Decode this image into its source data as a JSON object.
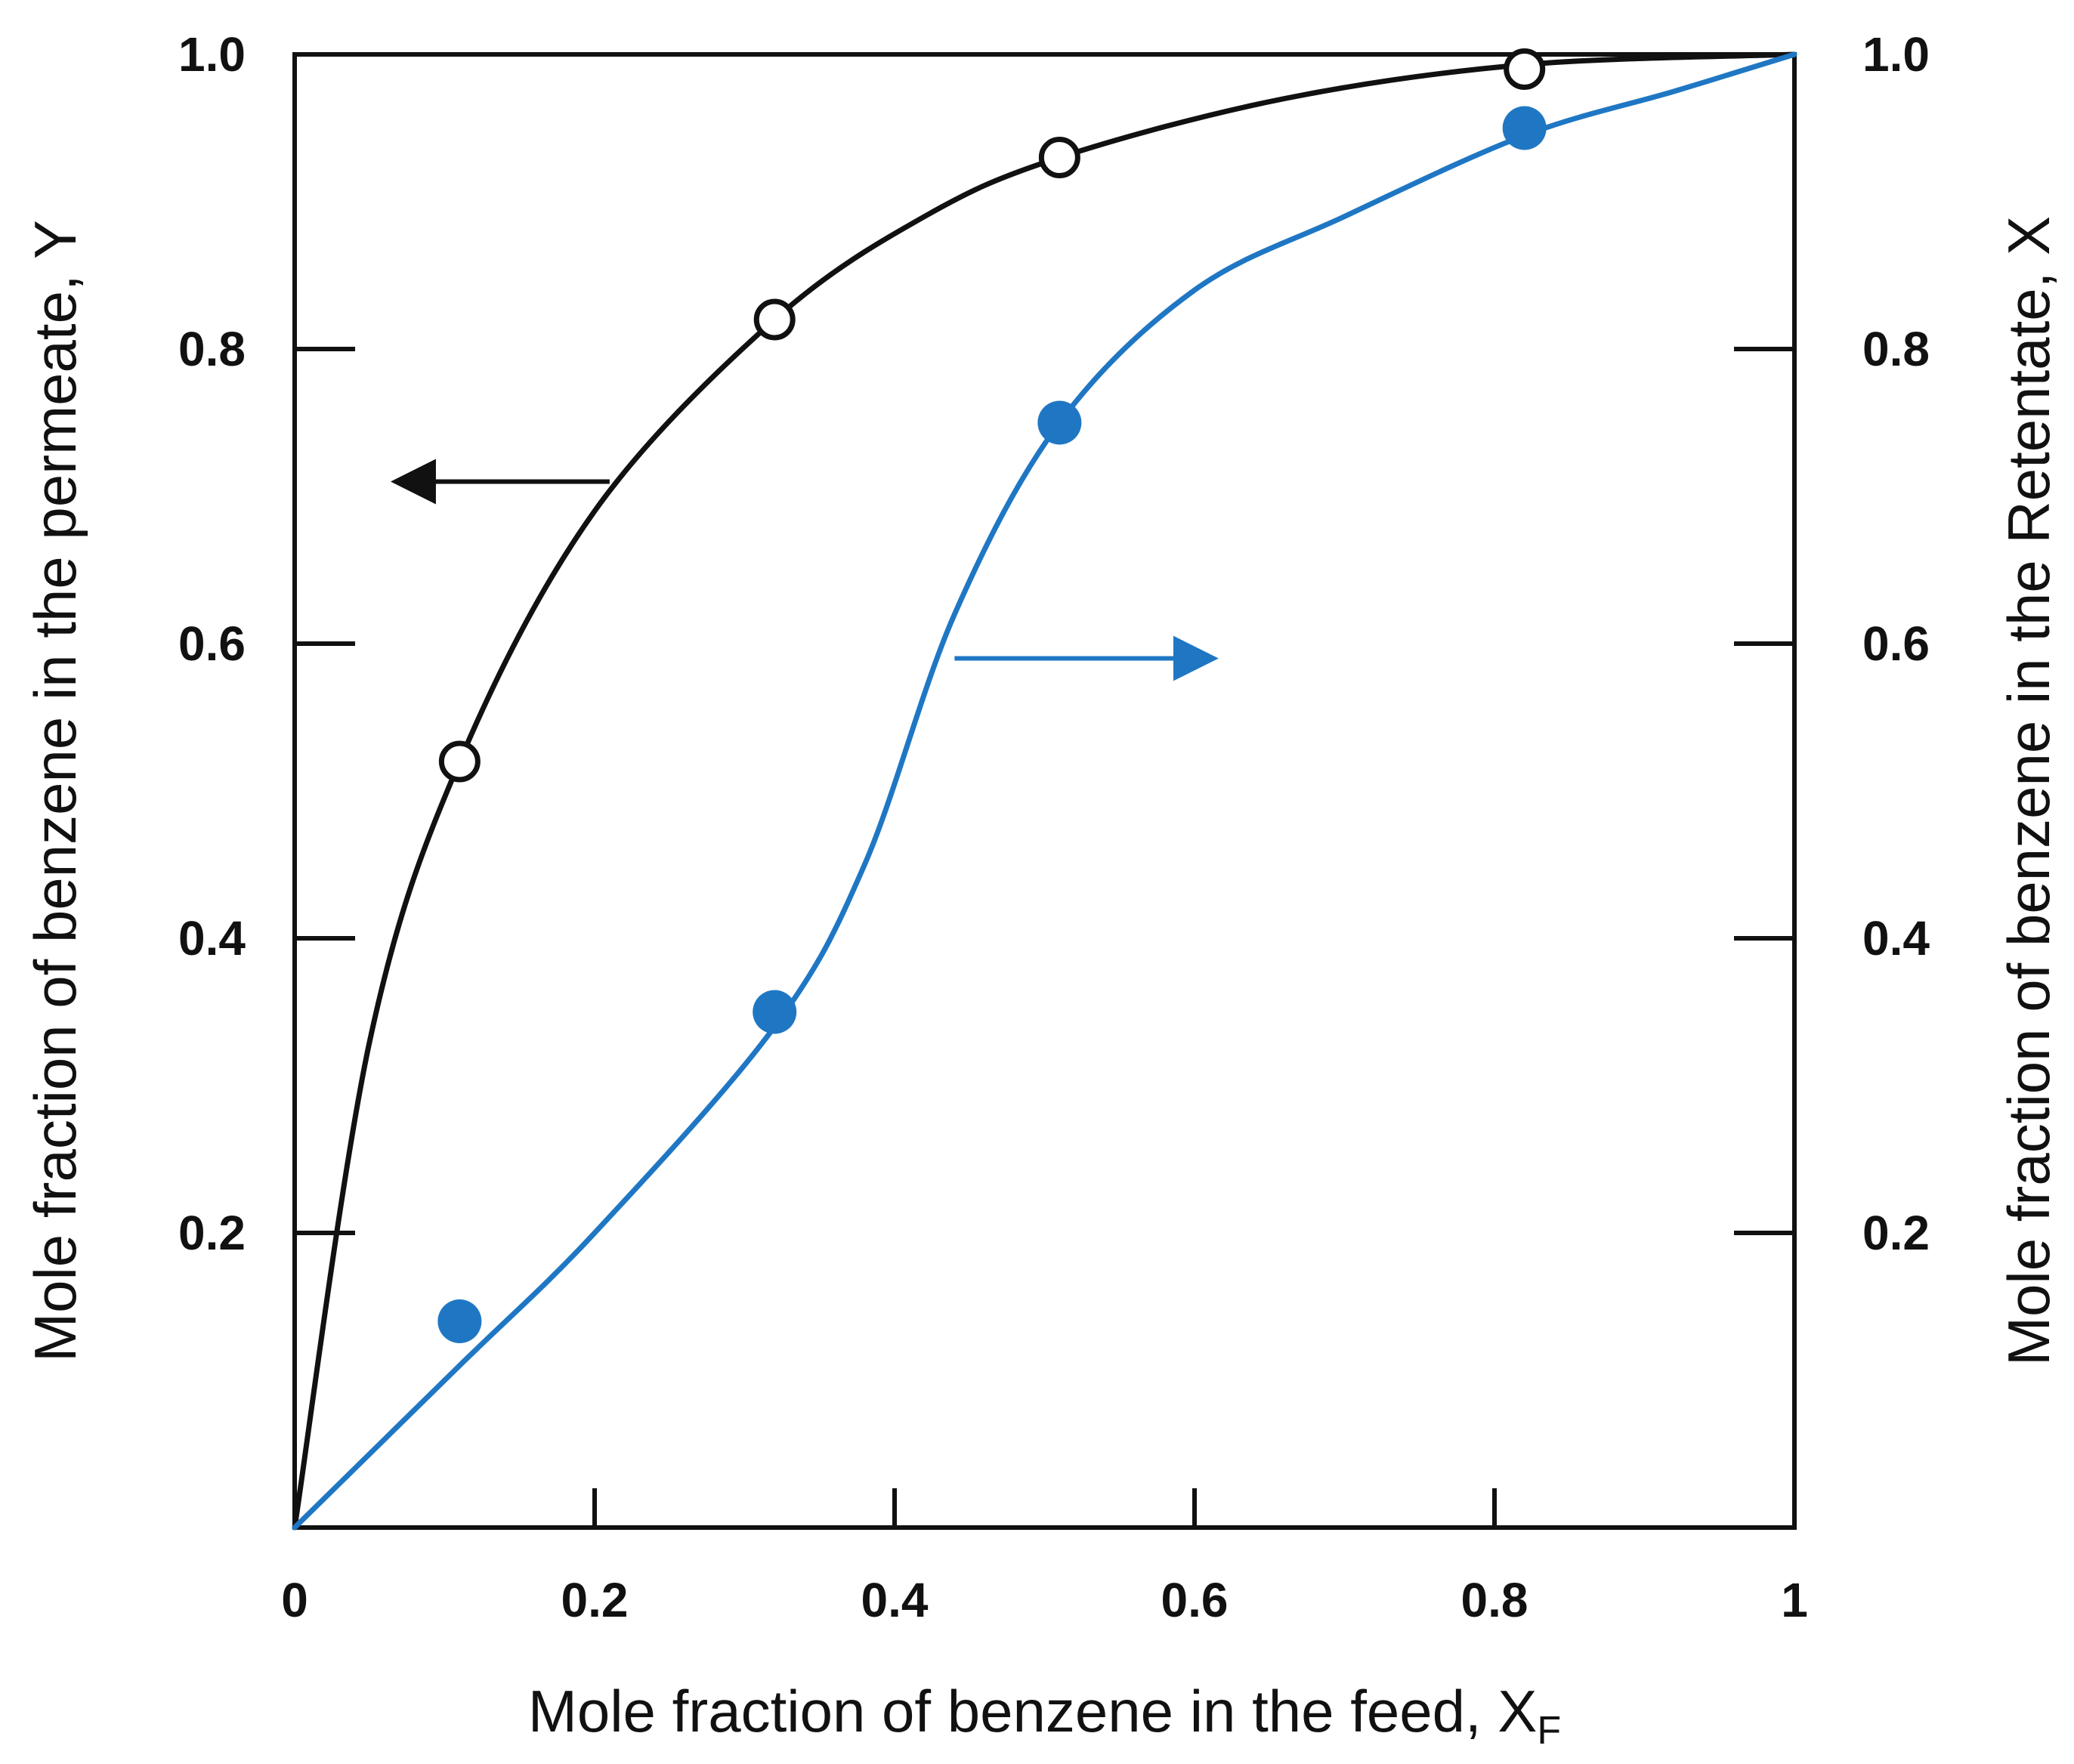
{
  "chart_data": {
    "type": "line",
    "title": "",
    "xlabel": "Mole fraction of benzene in the feed, X",
    "xlabel_subscript": "F",
    "ylabel_left": "Mole fraction of benzene in the permeate, Y",
    "ylabel_right": "Mole fraction of benzene in the Retentate, X",
    "xlim": [
      0,
      1
    ],
    "ylim": [
      0,
      1
    ],
    "x_ticks": [
      "0",
      "0.2",
      "0.4",
      "0.6",
      "0.8",
      "1"
    ],
    "y_ticks_left": [
      "0.2",
      "0.4",
      "0.6",
      "0.8",
      "1.0"
    ],
    "y_ticks_right": [
      "0.2",
      "0.4",
      "0.6",
      "0.8",
      "1.0"
    ],
    "grid": false,
    "series": [
      {
        "name": "Permeate Y",
        "axis": "left",
        "color": "#111111",
        "marker": "open-circle",
        "points": [
          {
            "x": 0.11,
            "y": 0.52
          },
          {
            "x": 0.32,
            "y": 0.82
          },
          {
            "x": 0.51,
            "y": 0.93
          },
          {
            "x": 0.82,
            "y": 0.99
          }
        ],
        "curve": [
          {
            "x": 0.0,
            "y": 0.0
          },
          {
            "x": 0.05,
            "y": 0.33
          },
          {
            "x": 0.11,
            "y": 0.52
          },
          {
            "x": 0.2,
            "y": 0.69
          },
          {
            "x": 0.32,
            "y": 0.82
          },
          {
            "x": 0.42,
            "y": 0.89
          },
          {
            "x": 0.51,
            "y": 0.93
          },
          {
            "x": 0.66,
            "y": 0.97
          },
          {
            "x": 0.82,
            "y": 0.993
          },
          {
            "x": 1.0,
            "y": 1.0
          }
        ]
      },
      {
        "name": "Retentate X",
        "axis": "right",
        "color": "#1f77c4",
        "marker": "filled-circle",
        "points": [
          {
            "x": 0.11,
            "y": 0.14
          },
          {
            "x": 0.32,
            "y": 0.35
          },
          {
            "x": 0.51,
            "y": 0.75
          },
          {
            "x": 0.82,
            "y": 0.95
          }
        ],
        "curve": [
          {
            "x": 0.0,
            "y": 0.0
          },
          {
            "x": 0.11,
            "y": 0.11
          },
          {
            "x": 0.2,
            "y": 0.2
          },
          {
            "x": 0.32,
            "y": 0.34
          },
          {
            "x": 0.38,
            "y": 0.45
          },
          {
            "x": 0.44,
            "y": 0.62
          },
          {
            "x": 0.51,
            "y": 0.75
          },
          {
            "x": 0.6,
            "y": 0.84
          },
          {
            "x": 0.7,
            "y": 0.89
          },
          {
            "x": 0.82,
            "y": 0.945
          },
          {
            "x": 0.92,
            "y": 0.975
          },
          {
            "x": 1.0,
            "y": 1.0
          }
        ]
      }
    ],
    "annotations": [
      {
        "type": "arrow",
        "direction": "left",
        "color": "#111111",
        "meaning": "permeate curve uses left axis",
        "from": {
          "x": 0.21,
          "y": 0.71
        },
        "to": {
          "x": 0.07,
          "y": 0.71
        }
      },
      {
        "type": "arrow",
        "direction": "right",
        "color": "#1f77c4",
        "meaning": "retentate curve uses right axis",
        "from": {
          "x": 0.44,
          "y": 0.59
        },
        "to": {
          "x": 0.61,
          "y": 0.59
        }
      }
    ]
  }
}
